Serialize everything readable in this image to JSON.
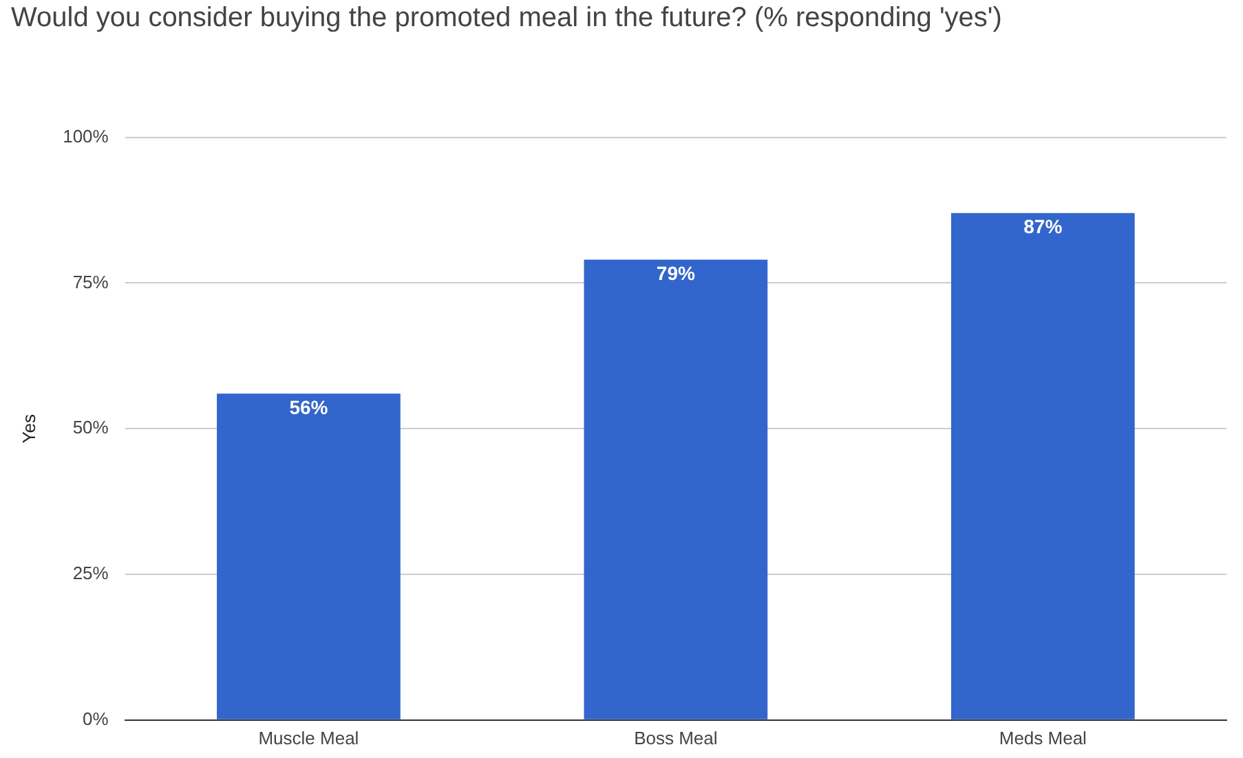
{
  "chart_data": {
    "type": "bar",
    "title": "Would you consider buying the promoted meal in the future? (% responding 'yes')",
    "ylabel": "Yes",
    "categories": [
      "Muscle Meal",
      "Boss Meal",
      "Meds Meal"
    ],
    "values": [
      56,
      79,
      87
    ],
    "color": "#3366cc",
    "value_labels": [
      "56%",
      "79%",
      "87%"
    ],
    "ylim": [
      0,
      100
    ],
    "yticks": [
      {
        "value": 0,
        "label": "0%"
      },
      {
        "value": 25,
        "label": "25%"
      },
      {
        "value": 50,
        "label": "50%"
      },
      {
        "value": 75,
        "label": "75%"
      },
      {
        "value": 100,
        "label": "100%"
      }
    ],
    "grid": "y",
    "legend": false
  }
}
